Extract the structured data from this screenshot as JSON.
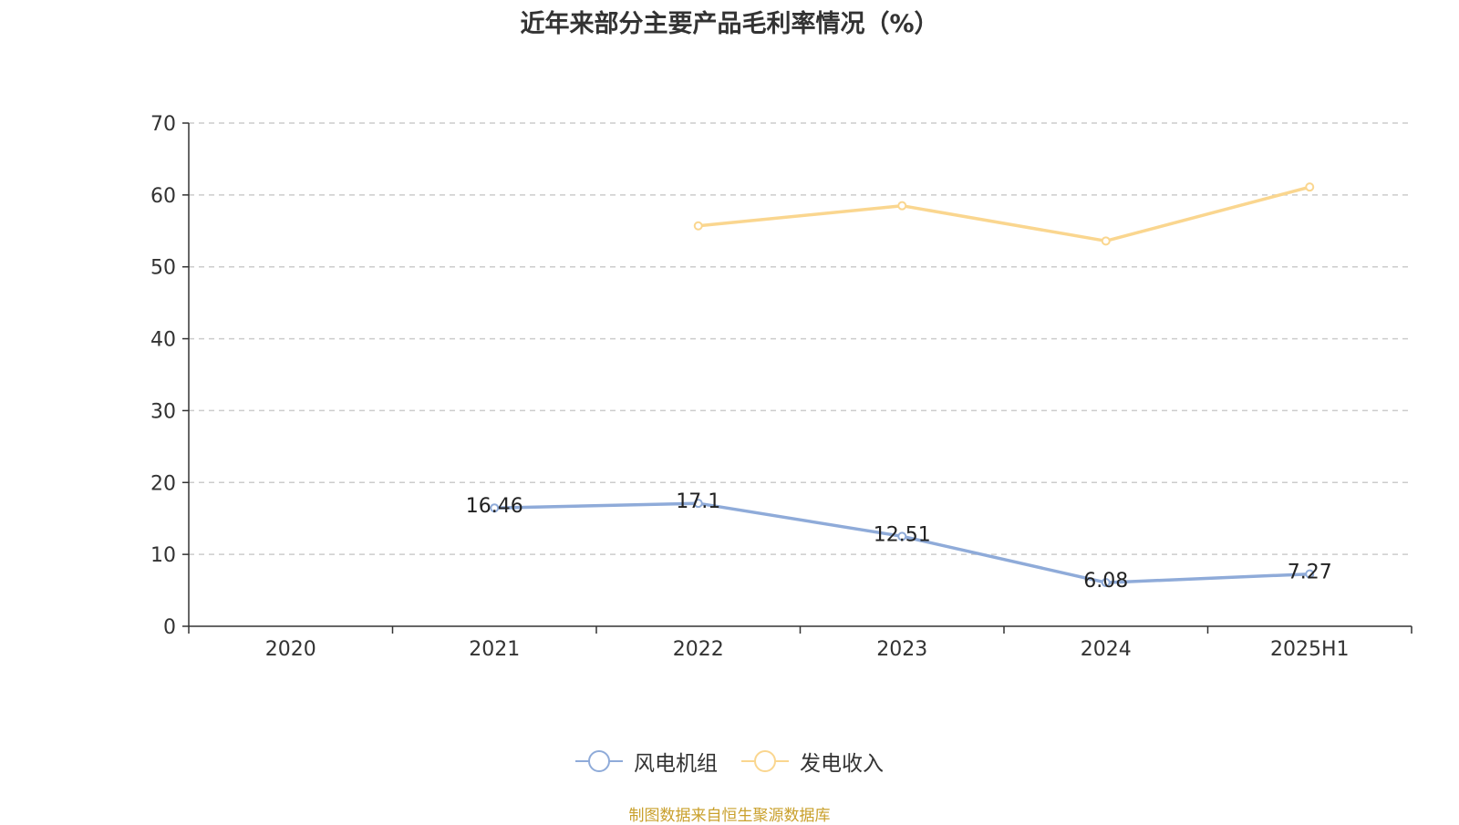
{
  "chart_data": {
    "type": "line",
    "title": "近年来部分主要产品毛利率情况（%）",
    "categories": [
      "2020",
      "2021",
      "2022",
      "2023",
      "2024",
      "2025H1"
    ],
    "ylim": [
      0,
      70
    ],
    "yticks": [
      0,
      10,
      20,
      30,
      40,
      50,
      60,
      70
    ],
    "grid": true,
    "legend_position": "bottom",
    "series": [
      {
        "name": "风电机组",
        "color": "#8fabd9",
        "values": [
          null,
          16.46,
          17.1,
          12.51,
          6.08,
          7.27
        ],
        "labels": [
          null,
          "16.46",
          "17.1",
          "12.51",
          "6.08",
          "7.27"
        ]
      },
      {
        "name": "发电收入",
        "color": "#fad68f",
        "values": [
          null,
          null,
          55.7,
          58.5,
          53.6,
          61.1
        ]
      }
    ]
  },
  "source_note": "制图数据来自恒生聚源数据库"
}
